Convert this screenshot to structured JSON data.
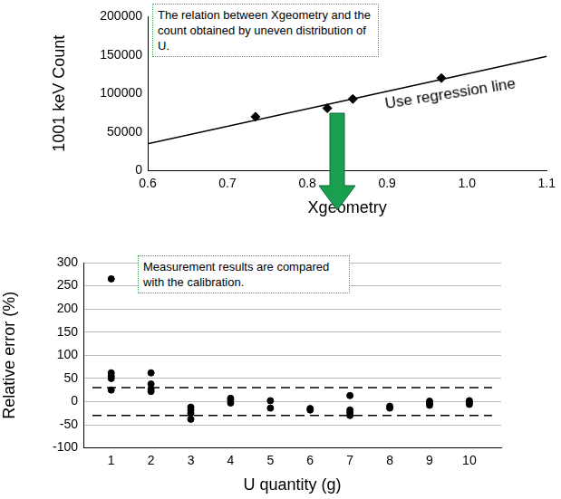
{
  "chart_data": [
    {
      "type": "scatter",
      "y_label": "1001 keV Count",
      "x_label": "Xgeometry",
      "annotations": [
        "The relation between Xgeometry and the count obtained by uneven distribution of U.",
        "Use regression line"
      ],
      "xlim": [
        0.6,
        1.1
      ],
      "xticks": [
        0.6,
        0.7,
        0.8,
        0.9,
        {
          "value": 1,
          "label": "1.0"
        },
        1.1
      ],
      "ylim": [
        0,
        200000
      ],
      "yticks": [
        0,
        50000,
        100000,
        150000,
        200000
      ],
      "grid": false,
      "series": [
        {
          "x": [
            0.735,
            0.825,
            0.857,
            0.968
          ],
          "values": [
            70000,
            81000,
            93000,
            120000
          ],
          "color": "#000000",
          "marker": "diamond"
        },
        {
          "type": "line",
          "x": [
            0.6,
            1.1
          ],
          "values": [
            35000,
            148000
          ],
          "color": "#000000",
          "marker": "none"
        }
      ]
    },
    {
      "type": "scatter",
      "y_label": "Relative error (%)",
      "x_label": "U quantity (g)",
      "annotations": [
        "Measurement results are compared with the calibration."
      ],
      "xlim": [
        0.3,
        10.8
      ],
      "xticks": [
        1,
        2,
        3,
        4,
        5,
        6,
        7,
        8,
        9,
        10
      ],
      "ylim": [
        -100,
        300
      ],
      "yticks": [
        -100,
        -50,
        0,
        50,
        100,
        150,
        200,
        250,
        300
      ],
      "grid": "y",
      "ref_lines": {
        "values": [
          30,
          -30
        ],
        "line_style": "dashed",
        "color": "#000000"
      },
      "series": [
        {
          "x": [
            1,
            1,
            1,
            1,
            1,
            2,
            2,
            2,
            2,
            3,
            3,
            3,
            3,
            4,
            4,
            4,
            5,
            5,
            6,
            6,
            7,
            7,
            7,
            7,
            8,
            8,
            9,
            9,
            9,
            10,
            10,
            10
          ],
          "values": [
            265,
            62,
            55,
            50,
            25,
            62,
            38,
            27,
            22,
            -12,
            -18,
            -25,
            -38,
            7,
            3,
            -3,
            2,
            -14,
            -15,
            -18,
            13,
            -18,
            -24,
            -30,
            -10,
            -14,
            1,
            -4,
            -8,
            2,
            -2,
            -6
          ],
          "color": "#000000",
          "marker": "circle"
        }
      ]
    }
  ]
}
